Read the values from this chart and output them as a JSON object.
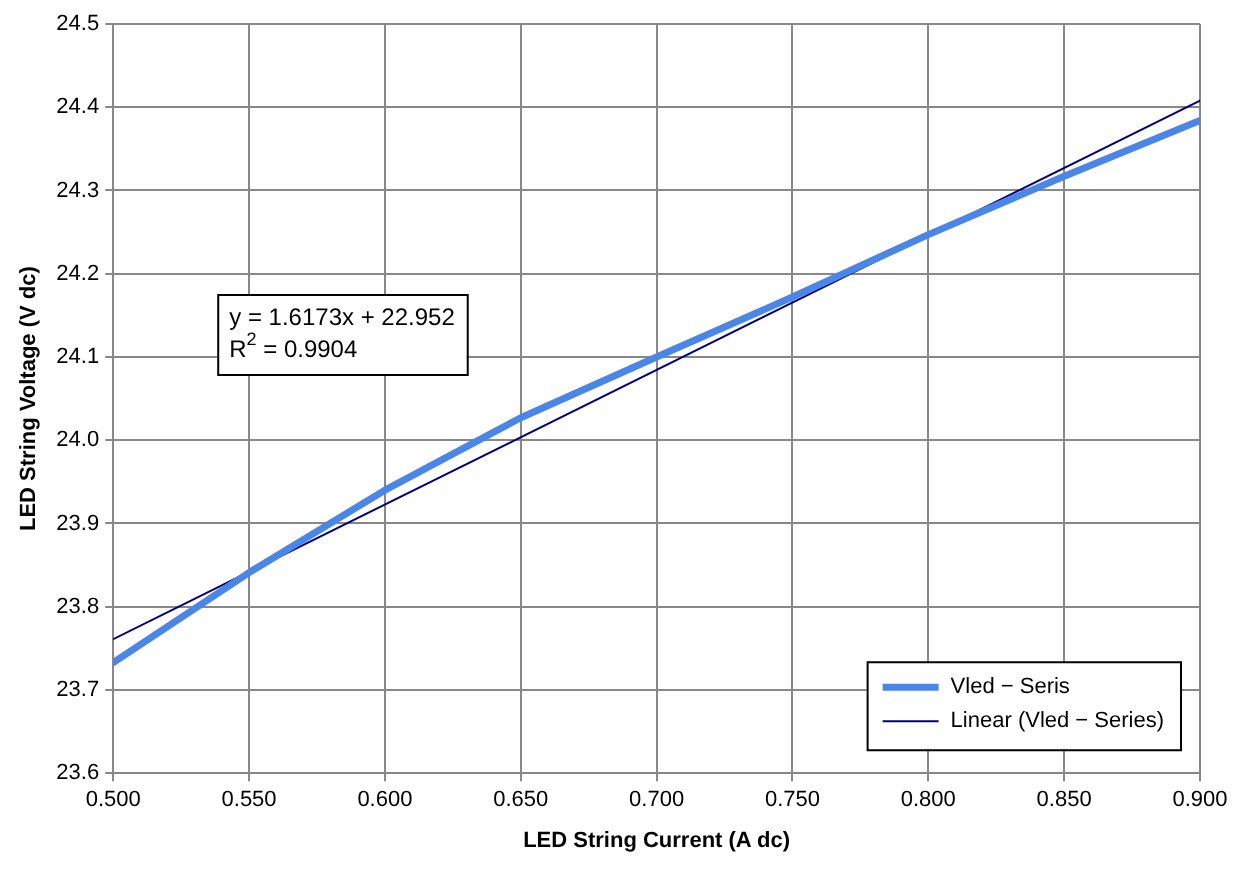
{
  "chart_data": {
    "type": "line",
    "xlabel": "LED String Current (A dc)",
    "ylabel": "LED String Voltage (V dc)",
    "series": [
      {
        "name": "Vled − Seris",
        "color": "#4a86e8",
        "x": [
          0.5,
          0.55,
          0.6,
          0.65,
          0.7,
          0.75,
          0.8,
          0.85,
          0.9
        ],
        "values": [
          23.733,
          23.841,
          23.94,
          24.027,
          24.1,
          24.172,
          24.247,
          24.317,
          24.384
        ]
      },
      {
        "name": "Linear (Vled − Series)",
        "color": "#000080",
        "type": "line",
        "x": [
          0.5,
          0.9
        ],
        "values": [
          23.761,
          24.408
        ]
      }
    ],
    "annotations": [
      "y = 1.6173x + 22.952",
      "R$^{2}$ = 0.9904"
    ],
    "xlim": [
      0.5,
      0.9
    ],
    "xticks": [
      {
        "value": 0.5,
        "label": "0.500"
      },
      {
        "value": 0.55,
        "label": "0.550"
      },
      {
        "value": 0.6,
        "label": "0.600"
      },
      {
        "value": 0.65,
        "label": "0.650"
      },
      {
        "value": 0.7,
        "label": "0.700"
      },
      {
        "value": 0.75,
        "label": "0.750"
      },
      {
        "value": 0.8,
        "label": "0.800"
      },
      {
        "value": 0.85,
        "label": "0.850"
      },
      {
        "value": 0.9,
        "label": "0.900"
      }
    ],
    "ylim": [
      23.6,
      24.5
    ],
    "yticks": [
      {
        "value": 23.6,
        "label": "23.6"
      },
      {
        "value": 23.7,
        "label": "23.7"
      },
      {
        "value": 23.8,
        "label": "23.8"
      },
      {
        "value": 23.9,
        "label": "23.9"
      },
      {
        "value": 24.0,
        "label": "24.0"
      },
      {
        "value": 24.1,
        "label": "24.1"
      },
      {
        "value": 24.2,
        "label": "24.2"
      },
      {
        "value": 24.3,
        "label": "24.3"
      },
      {
        "value": 24.4,
        "label": "24.4"
      },
      {
        "value": 24.5,
        "label": "24.5"
      }
    ],
    "grid": true,
    "legend": "bottom right",
    "marker": "none",
    "line_style": "solid"
  }
}
